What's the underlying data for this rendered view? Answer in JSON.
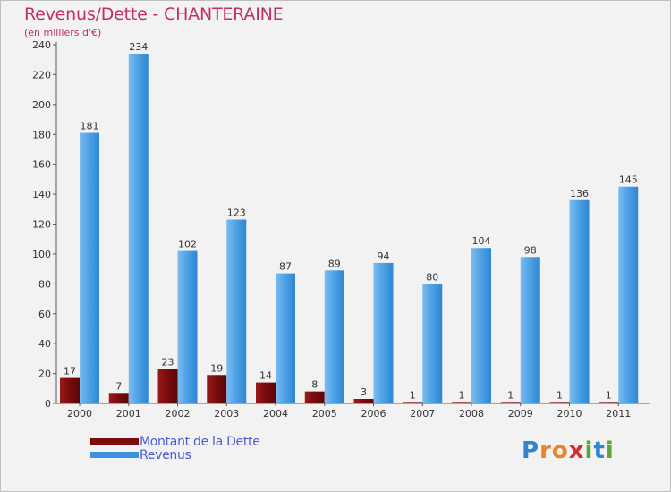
{
  "header": {
    "title": "Revenus/Dette - CHANTERAINE",
    "subtitle": "(en milliers d'€)"
  },
  "chart_data": {
    "type": "bar",
    "title": "Revenus/Dette - CHANTERAINE",
    "ylabel": "(en milliers d'€)",
    "xlabel": "",
    "categories": [
      "2000",
      "2001",
      "2002",
      "2003",
      "2004",
      "2005",
      "2006",
      "2007",
      "2008",
      "2009",
      "2010",
      "2011"
    ],
    "series": [
      {
        "name": "Montant de la Dette",
        "color": "#7a0c0c",
        "values": [
          17,
          7,
          23,
          19,
          14,
          8,
          3,
          1,
          1,
          1,
          1,
          1
        ]
      },
      {
        "name": "Revenus",
        "color": "#3a93dc",
        "values": [
          181,
          234,
          102,
          123,
          87,
          89,
          94,
          80,
          104,
          98,
          136,
          145
        ]
      }
    ],
    "ylim": [
      0,
      240
    ],
    "yticks": [
      0,
      20,
      40,
      60,
      80,
      100,
      120,
      140,
      160,
      180,
      200,
      220,
      240
    ],
    "grid": false,
    "legend": "bottom-left"
  },
  "legend": {
    "items": [
      {
        "label": "Montant de la Dette",
        "color": "#7a0c0c"
      },
      {
        "label": "Revenus",
        "color": "#3a93dc"
      }
    ]
  },
  "brand": {
    "letters": [
      {
        "ch": "P",
        "color": "#2e86d0"
      },
      {
        "ch": "r",
        "color": "#e8842a"
      },
      {
        "ch": "o",
        "color": "#e8842a"
      },
      {
        "ch": "x",
        "color": "#cf2f2f"
      },
      {
        "ch": "i",
        "color": "#5ba63a"
      },
      {
        "ch": "t",
        "color": "#2e86d0"
      },
      {
        "ch": "i",
        "color": "#5ba63a"
      }
    ]
  }
}
